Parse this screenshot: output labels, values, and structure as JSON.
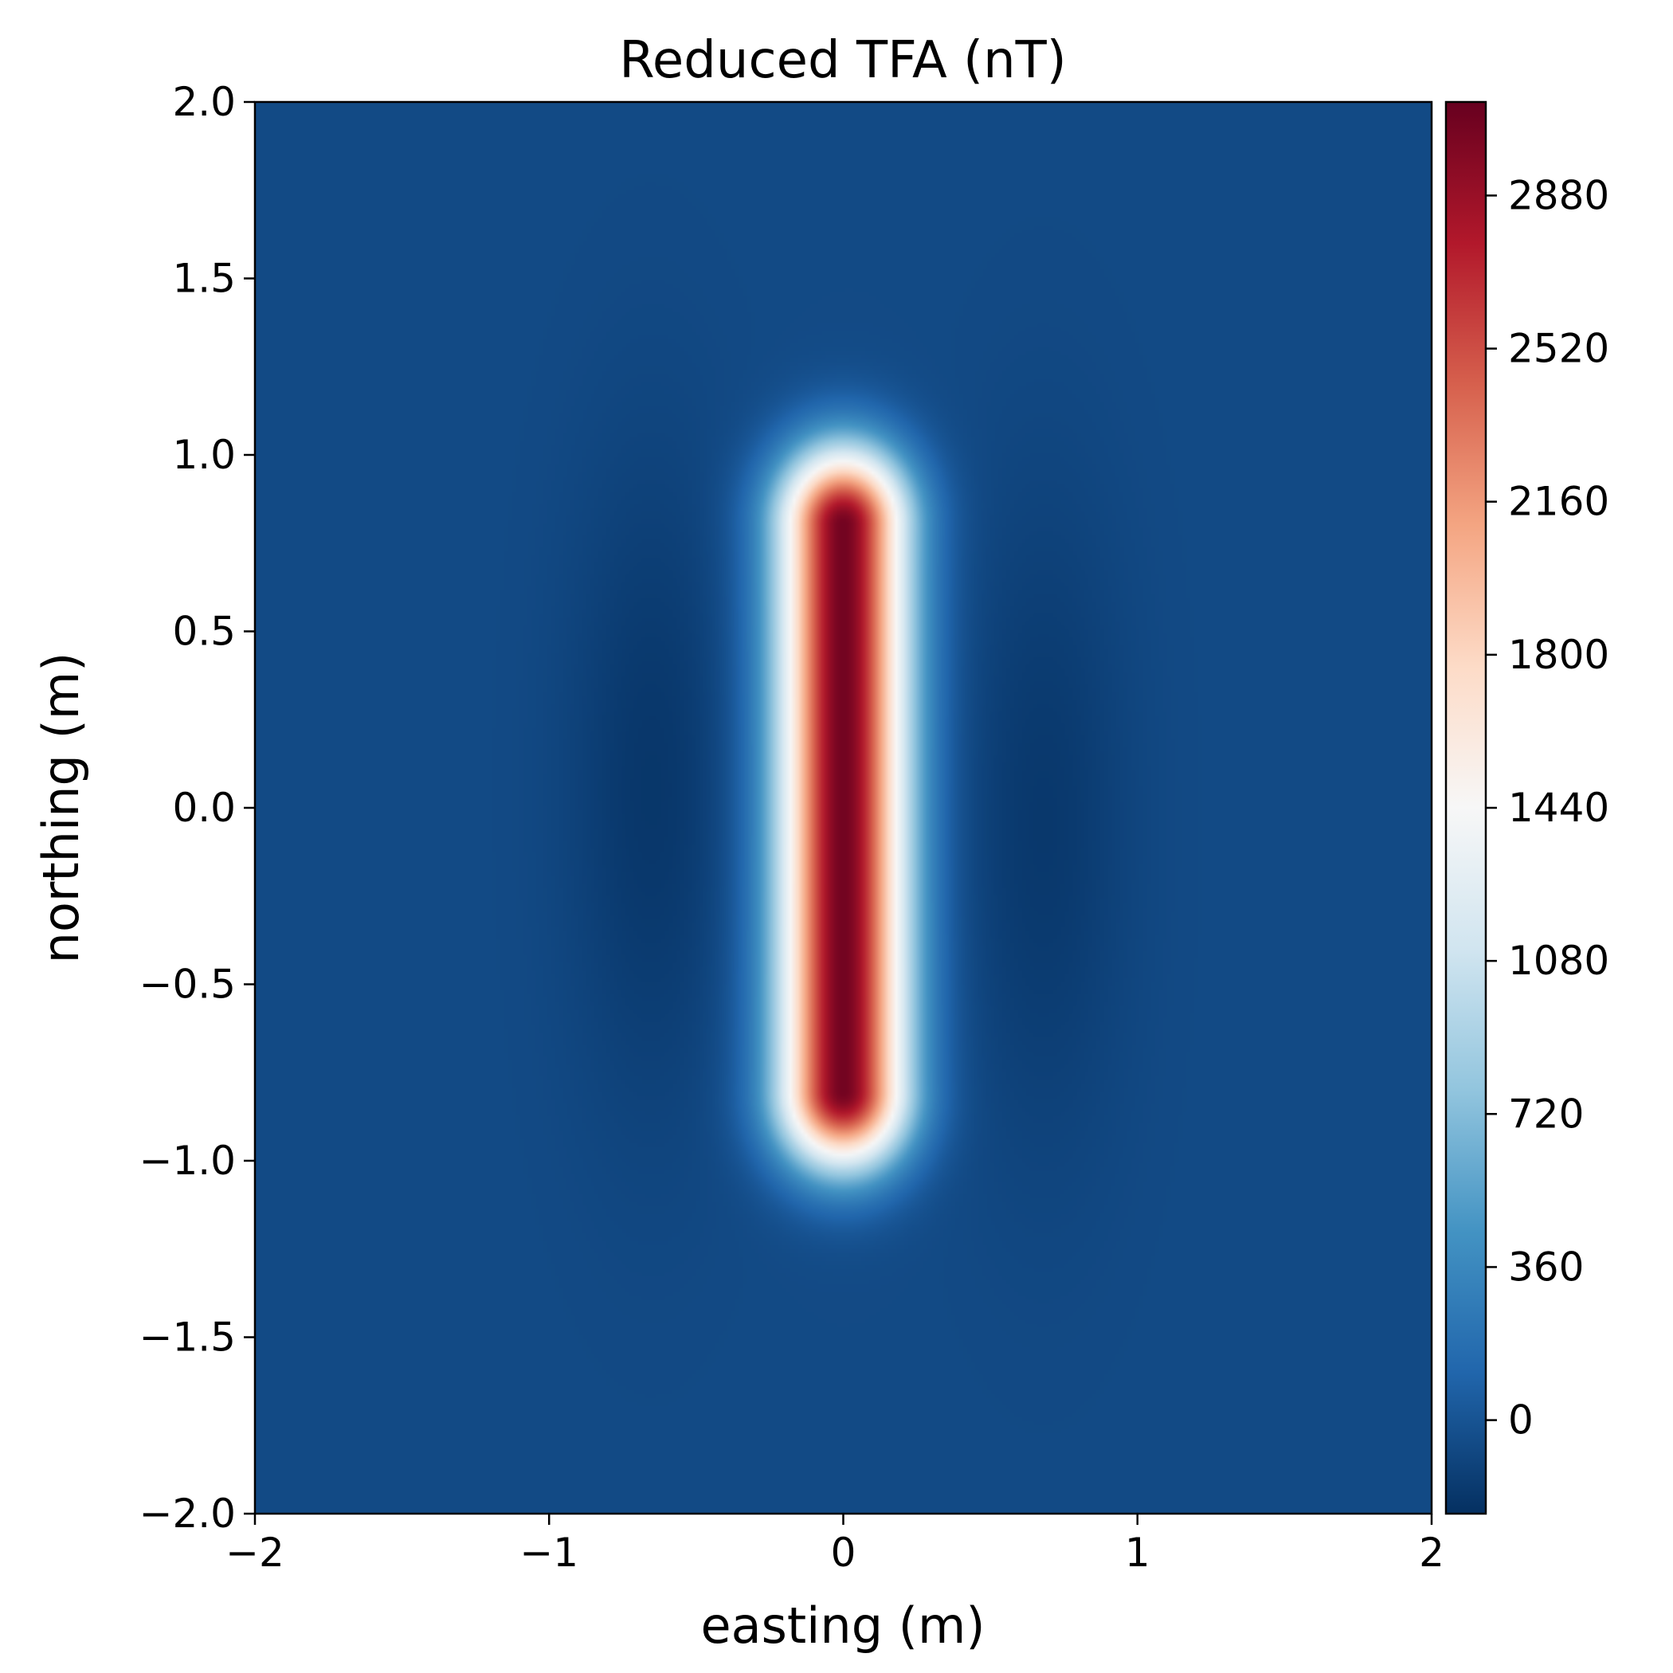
{
  "chart_data": {
    "type": "heatmap",
    "title": "Reduced TFA (nT)",
    "xlabel": "easting (m)",
    "ylabel": "northing (m)",
    "xlim": [
      -2,
      2
    ],
    "ylim": [
      -2,
      2
    ],
    "x_ticks": [
      -2,
      -1,
      0,
      1,
      2
    ],
    "x_tick_labels": [
      "−2",
      "−1",
      "0",
      "1",
      "2"
    ],
    "y_ticks": [
      2.0,
      1.5,
      1.0,
      0.5,
      0.0,
      -0.5,
      -1.0,
      -1.5,
      -2.0
    ],
    "y_tick_labels": [
      "2.0",
      "1.5",
      "1.0",
      "0.5",
      "0.0",
      "−0.5",
      "−1.0",
      "−1.5",
      "−2.0"
    ],
    "colormap": "RdBu_r",
    "colorbar": {
      "range": [
        -220,
        3100
      ],
      "ticks": [
        0,
        360,
        720,
        1080,
        1440,
        1800,
        2160,
        2520,
        2880
      ],
      "tick_labels": [
        "0",
        "360",
        "720",
        "1080",
        "1440",
        "1800",
        "2160",
        "2520",
        "2880"
      ],
      "color_stops": [
        "#053061",
        "#2166ac",
        "#4393c3",
        "#92c5de",
        "#d1e5f0",
        "#f7f7f7",
        "#fddbc7",
        "#f4a582",
        "#d6604d",
        "#b2182b",
        "#67001f"
      ]
    },
    "anomaly": {
      "center_easting": 0.0,
      "center_northing": 0.0,
      "peak_value": 3050,
      "extent_easting": [
        -0.15,
        0.15
      ],
      "extent_northing": [
        -0.8,
        0.8
      ],
      "flanking_minima": [
        {
          "easting": -0.65,
          "northing": 0.05,
          "value": -180
        },
        {
          "easting": 0.68,
          "northing": -0.05,
          "value": -170
        }
      ],
      "background_value": -60
    }
  }
}
